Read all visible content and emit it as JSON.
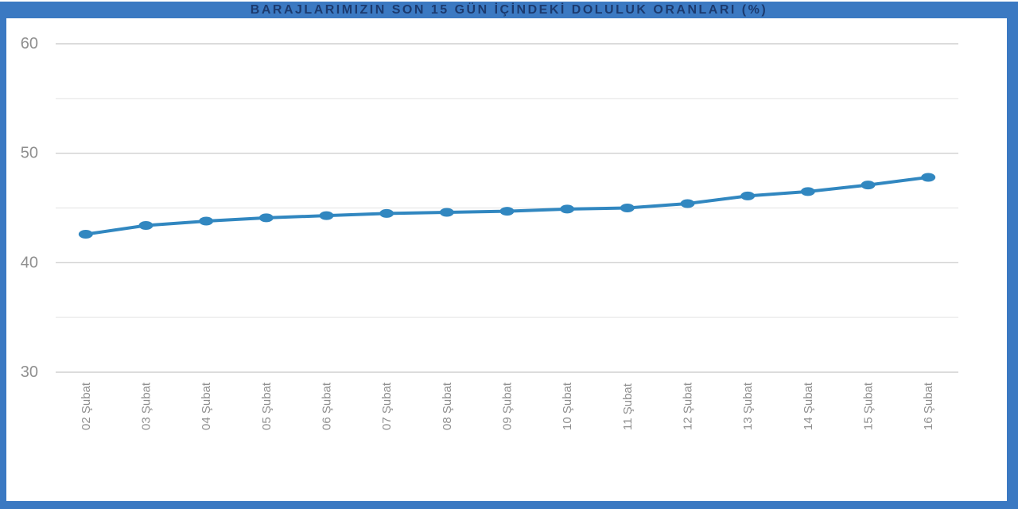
{
  "title": "BARAJLARIMIZIN SON 15 GÜN İÇİNDEKİ DOLULUK ORANLARI (%)",
  "colors": {
    "frame": "#3b79c2",
    "title_text": "#1c3a6e",
    "line": "#3187c0",
    "marker": "#3187c0",
    "major_grid": "#c6c6c6",
    "minor_grid": "#e3e3e3",
    "axis_label": "#8f8f8f",
    "background": "#ffffff"
  },
  "chart_data": {
    "type": "line",
    "title": "BARAJLARIMIZIN SON 15 GÜN İÇİNDEKİ DOLULUK ORANLARI (%)",
    "categories": [
      "02 Şubat",
      "03 Şubat",
      "04 Şubat",
      "05 Şubat",
      "06 Şubat",
      "07 Şubat",
      "08 Şubat",
      "09 Şubat",
      "10 Şubat",
      "11 Şubat",
      "12 Şubat",
      "13 Şubat",
      "14 Şubat",
      "15 Şubat",
      "16 Şubat"
    ],
    "values": [
      42.6,
      43.4,
      43.8,
      44.1,
      44.3,
      44.5,
      44.6,
      44.7,
      44.9,
      45.0,
      45.4,
      46.1,
      46.5,
      47.1,
      47.8
    ],
    "xlabel": "",
    "ylabel": "",
    "ylim": [
      30,
      60
    ],
    "yticks_major": [
      30,
      40,
      50,
      60
    ],
    "yticks_minor": [
      35,
      45,
      55
    ],
    "grid": true,
    "legend": "none",
    "marker_shape": "ellipse",
    "x_label_rotation_deg": -90
  }
}
